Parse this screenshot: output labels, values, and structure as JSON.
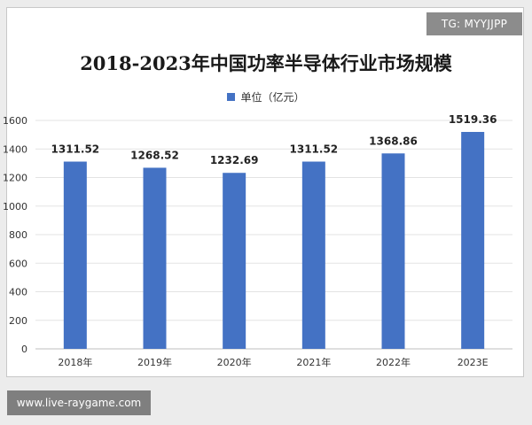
{
  "watermarks": {
    "top_right": "TG: MYYJJPP",
    "bottom_left": "www.live-raygame.com"
  },
  "chart_data": {
    "type": "bar",
    "title": "2018-2023年中国功率半导体行业市场规模",
    "legend": {
      "label": "单位（亿元）",
      "position": "top-center"
    },
    "categories": [
      "2018年",
      "2019年",
      "2020年",
      "2021年",
      "2022年",
      "2023E"
    ],
    "values": [
      1311.52,
      1268.52,
      1232.69,
      1311.52,
      1368.86,
      1519.36
    ],
    "value_labels": [
      "1311.52",
      "1268.52",
      "1232.69",
      "1311.52",
      "1368.86",
      "1519.36"
    ],
    "ylim": [
      0,
      1600
    ],
    "yticks": [
      0,
      200,
      400,
      600,
      800,
      1000,
      1200,
      1400,
      1600
    ],
    "grid": true,
    "bar_color": "#4472c4"
  }
}
